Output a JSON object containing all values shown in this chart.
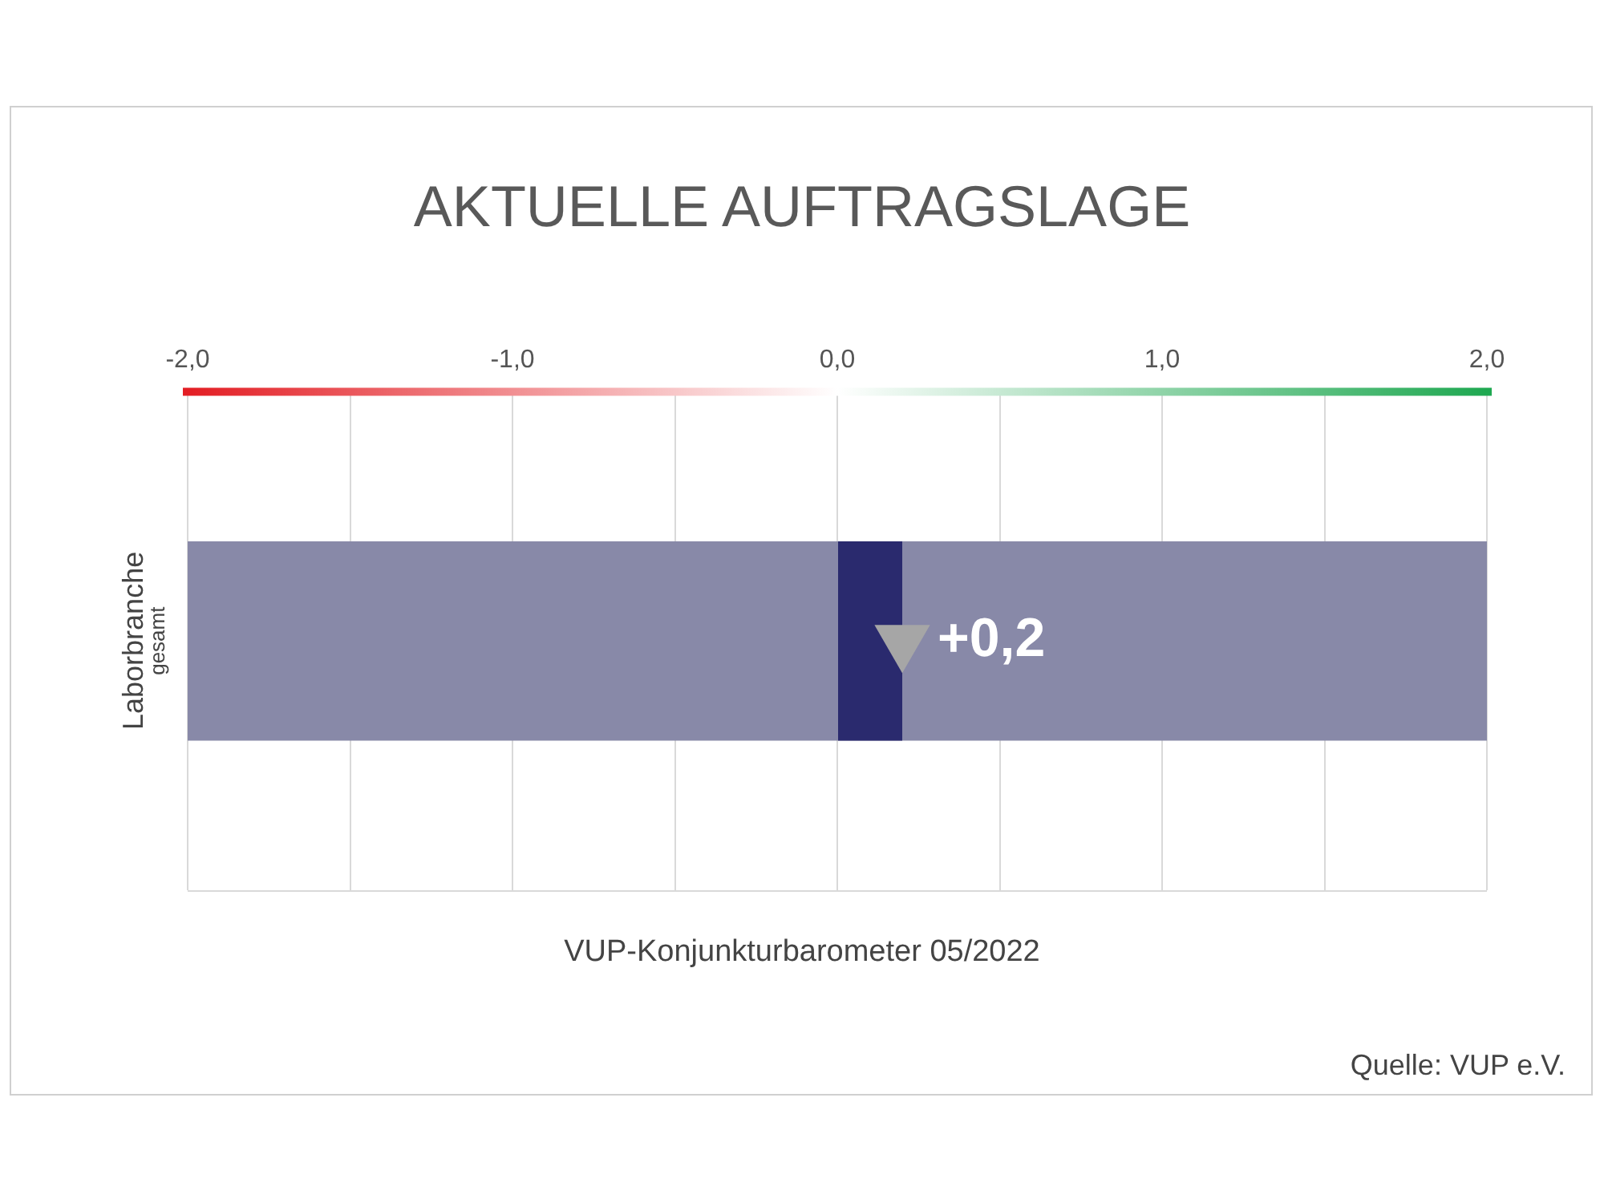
{
  "chart_data": {
    "type": "bar",
    "orientation": "horizontal",
    "title": "AKTUELLE AUFTRAGSLAGE",
    "xlabel": "VUP-Konjunkturbarometer 05/2022",
    "ylabel": "Laborbranche",
    "categories": [
      "gesamt"
    ],
    "series": [
      {
        "color": "#8889a8",
        "values": [
          4
        ],
        "base": [
          -2
        ]
      },
      {
        "color": "#2a2a6e",
        "values": [
          0.2
        ],
        "base": [
          0
        ],
        "value_labels": [
          "+0,2"
        ]
      },
      {
        "type": "scatter",
        "color": "#a6a6a6",
        "values": [
          0.2
        ],
        "marker": "triangle"
      }
    ],
    "xlim": [
      -2,
      2
    ],
    "xticks": [
      {
        "value": -2,
        "label": "-2,0"
      },
      {
        "value": -1.5,
        "label": null
      },
      {
        "value": -1,
        "label": "-1,0"
      },
      {
        "value": -0.5,
        "label": null
      },
      {
        "value": 0,
        "label": "0,0"
      },
      {
        "value": 0.5,
        "label": null
      },
      {
        "value": 1,
        "label": "1,0"
      },
      {
        "value": 1.5,
        "label": null
      },
      {
        "value": 2,
        "label": "2,0"
      }
    ],
    "grid": "x",
    "legend": false,
    "annotations": [
      "Quelle: VUP e.V."
    ]
  }
}
